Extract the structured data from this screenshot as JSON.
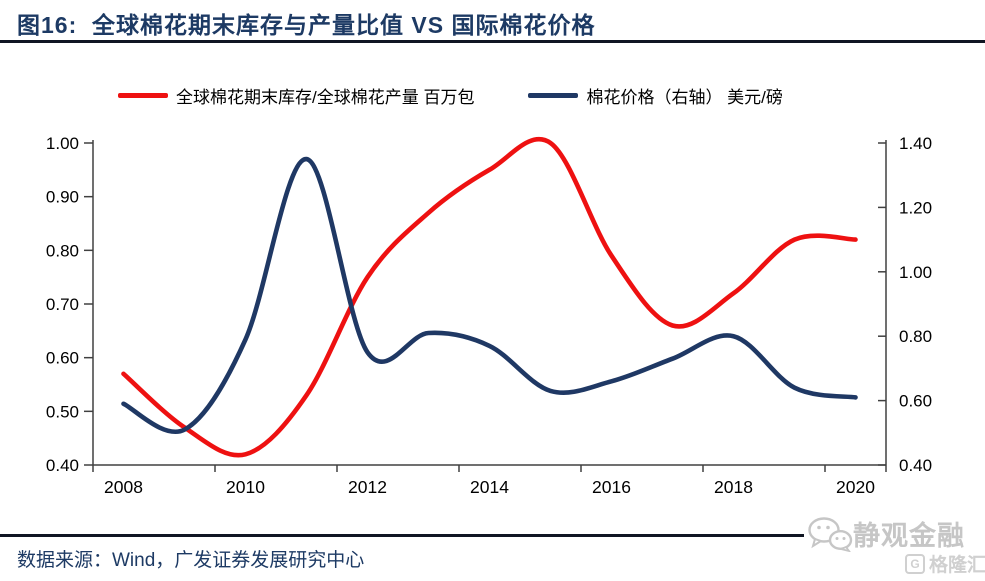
{
  "header": {
    "title": "图16:  全球棉花期末库存与产量比值 VS 国际棉花价格"
  },
  "legend": {
    "items": [
      {
        "label": "全球棉花期末库存/全球棉花产量 百万包",
        "color": "#ee1111"
      },
      {
        "label": "棉花价格（右轴） 美元/磅",
        "color": "#1f3864"
      }
    ]
  },
  "footer": {
    "source_text": "数据来源：Wind，广发证券发展研究中心"
  },
  "watermark": {
    "account_name": "静观金融",
    "site_name": "格隆汇",
    "site_logo_letter": "G",
    "icon": "wechat-icon",
    "color": "#c6c6c6"
  },
  "colors": {
    "title_text": "#1d3a64",
    "rule": "#101623",
    "axis": "#404040",
    "ratio_series": "#ee1111",
    "price_series": "#1f3864"
  },
  "chart_data": {
    "type": "line",
    "title": "全球棉花期末库存与产量比值 VS 国际棉花价格",
    "x": [
      2008,
      2009,
      2010,
      2011,
      2012,
      2013,
      2014,
      2015,
      2016,
      2017,
      2018,
      2019,
      2020
    ],
    "x_tick_labels": [
      "2008",
      "2010",
      "2012",
      "2014",
      "2016",
      "2018",
      "2020"
    ],
    "series": [
      {
        "name": "全球棉花期末库存/全球棉花产量 百万包",
        "axis": "left",
        "color": "#ee1111",
        "values": [
          0.57,
          0.47,
          0.42,
          0.53,
          0.75,
          0.87,
          0.95,
          1.0,
          0.79,
          0.66,
          0.72,
          0.82,
          0.82
        ]
      },
      {
        "name": "棉花价格（右轴） 美元/磅",
        "axis": "right",
        "color": "#1f3864",
        "values": [
          0.59,
          0.51,
          0.79,
          1.35,
          0.75,
          0.81,
          0.77,
          0.63,
          0.66,
          0.73,
          0.8,
          0.64,
          0.61
        ]
      }
    ],
    "left_axis": {
      "min": 0.4,
      "max": 1.0,
      "step": 0.1,
      "tick_labels": [
        "0.40",
        "0.50",
        "0.60",
        "0.70",
        "0.80",
        "0.90",
        "1.00"
      ]
    },
    "right_axis": {
      "min": 0.4,
      "max": 1.4,
      "step": 0.2,
      "tick_labels": [
        "0.40",
        "0.60",
        "0.80",
        "1.00",
        "1.20",
        "1.40"
      ]
    },
    "grid": false,
    "legend_position": "top-center"
  }
}
